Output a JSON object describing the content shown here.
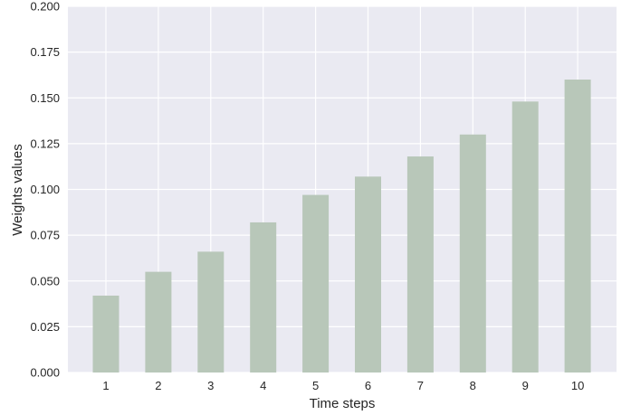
{
  "chart_data": {
    "type": "bar",
    "title": "",
    "xlabel": "Time steps",
    "ylabel": "Weights values",
    "categories": [
      "1",
      "2",
      "3",
      "4",
      "5",
      "6",
      "7",
      "8",
      "9",
      "10"
    ],
    "values": [
      0.042,
      0.055,
      0.066,
      0.082,
      0.097,
      0.107,
      0.118,
      0.13,
      0.148,
      0.16
    ],
    "ylim": [
      0,
      0.2
    ],
    "yticks": [
      "0.000",
      "0.025",
      "0.050",
      "0.075",
      "0.100",
      "0.125",
      "0.150",
      "0.175",
      "0.200"
    ],
    "grid": true,
    "colors": {
      "background": "#EAEAF2",
      "bar": "#B8C7B9",
      "grid": "#FFFFFF"
    }
  }
}
